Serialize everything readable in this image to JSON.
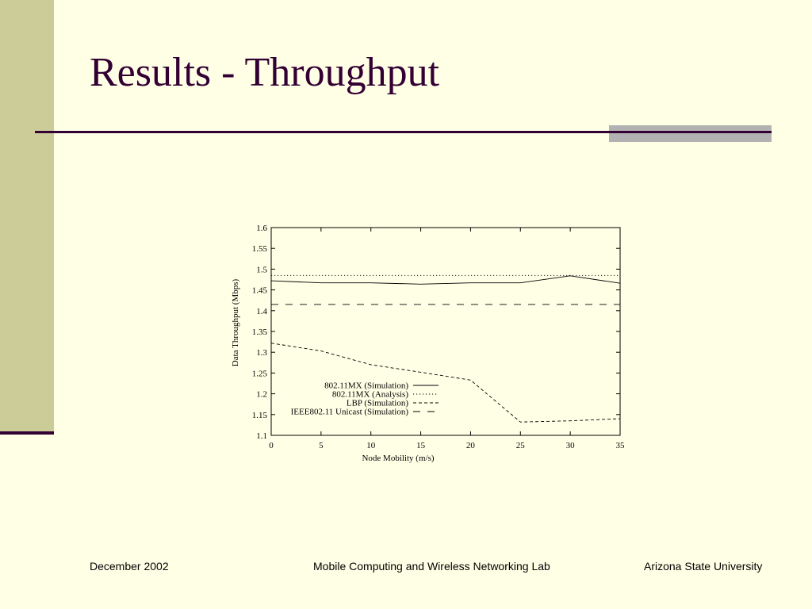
{
  "slide": {
    "title": "Results - Throughput",
    "footer_left": "December 2002",
    "footer_center": "Mobile Computing and Wireless Networking Lab",
    "footer_right": "Arizona State University",
    "colors": {
      "background": "#ffffe6",
      "accent_band": "#cccc99",
      "title": "#330033",
      "rule": "#330033",
      "rule_bars": "#b2b2b2"
    }
  },
  "chart_data": {
    "type": "line",
    "title": "",
    "xlabel": "Node Mobility (m/s)",
    "ylabel": "Data Throughput (Mbps)",
    "xlim": [
      0,
      35
    ],
    "ylim": [
      1.1,
      1.6
    ],
    "xticks": [
      0,
      5,
      10,
      15,
      20,
      25,
      30,
      35
    ],
    "xtick_labels": [
      "0",
      "5",
      "10",
      "15",
      "20",
      "25",
      "30",
      "35"
    ],
    "yticks": [
      1.1,
      1.15,
      1.2,
      1.25,
      1.3,
      1.35,
      1.4,
      1.45,
      1.5,
      1.55,
      1.6
    ],
    "ytick_labels": [
      "1.1",
      "1.15",
      "1.2",
      "1.25",
      "1.3",
      "1.35",
      "1.4",
      "1.45",
      "1.5",
      "1.55",
      "1.6"
    ],
    "grid": false,
    "legend_position": "bottom-left",
    "series": [
      {
        "name": "802.11MX (Simulation)",
        "style": "solid",
        "x": [
          0,
          5,
          10,
          15,
          20,
          25,
          30,
          35
        ],
        "y": [
          1.472,
          1.467,
          1.467,
          1.464,
          1.467,
          1.467,
          1.484,
          1.466
        ]
      },
      {
        "name": "802.11MX (Analysis)",
        "style": "dotted",
        "x": [
          0,
          35
        ],
        "y": [
          1.485,
          1.485
        ]
      },
      {
        "name": "LBP (Simulation)",
        "style": "dashed",
        "x": [
          0,
          5,
          10,
          15,
          20,
          25,
          30,
          35
        ],
        "y": [
          1.322,
          1.303,
          1.27,
          1.252,
          1.233,
          1.132,
          1.135,
          1.14
        ]
      },
      {
        "name": "IEEE802.11 Unicast (Simulation)",
        "style": "longdash",
        "x": [
          0,
          35
        ],
        "y": [
          1.415,
          1.415
        ]
      }
    ]
  }
}
